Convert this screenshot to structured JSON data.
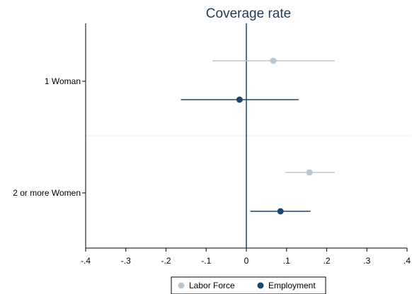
{
  "chart_data": {
    "type": "scatter",
    "subtype": "coefficient-plot",
    "title": "Coverage rate",
    "xlim": [
      -0.4,
      0.4
    ],
    "x_ticks": [
      -0.4,
      -0.3,
      -0.2,
      -0.1,
      0,
      0.1,
      0.2,
      0.3,
      0.4
    ],
    "x_tick_labels": [
      "-.4",
      "-.3",
      "-.2",
      "-.1",
      "0",
      ".1",
      ".2",
      ".3",
      ".4"
    ],
    "categories": [
      "1 Woman",
      "2 or more Women"
    ],
    "reference_line_x": 0,
    "grid": false,
    "legend_position": "bottom",
    "series": [
      {
        "name": "Labor Force",
        "color": "#b9c7d2",
        "points": [
          {
            "category": "1 Woman",
            "estimate": 0.067,
            "ci_low": -0.085,
            "ci_high": 0.22
          },
          {
            "category": "2 or more Women",
            "estimate": 0.157,
            "ci_low": 0.097,
            "ci_high": 0.22
          }
        ]
      },
      {
        "name": "Employment",
        "color": "#1a476f",
        "points": [
          {
            "category": "1 Woman",
            "estimate": -0.017,
            "ci_low": -0.163,
            "ci_high": 0.13
          },
          {
            "category": "2 or more Women",
            "estimate": 0.085,
            "ci_low": 0.01,
            "ci_high": 0.16
          }
        ]
      }
    ]
  }
}
